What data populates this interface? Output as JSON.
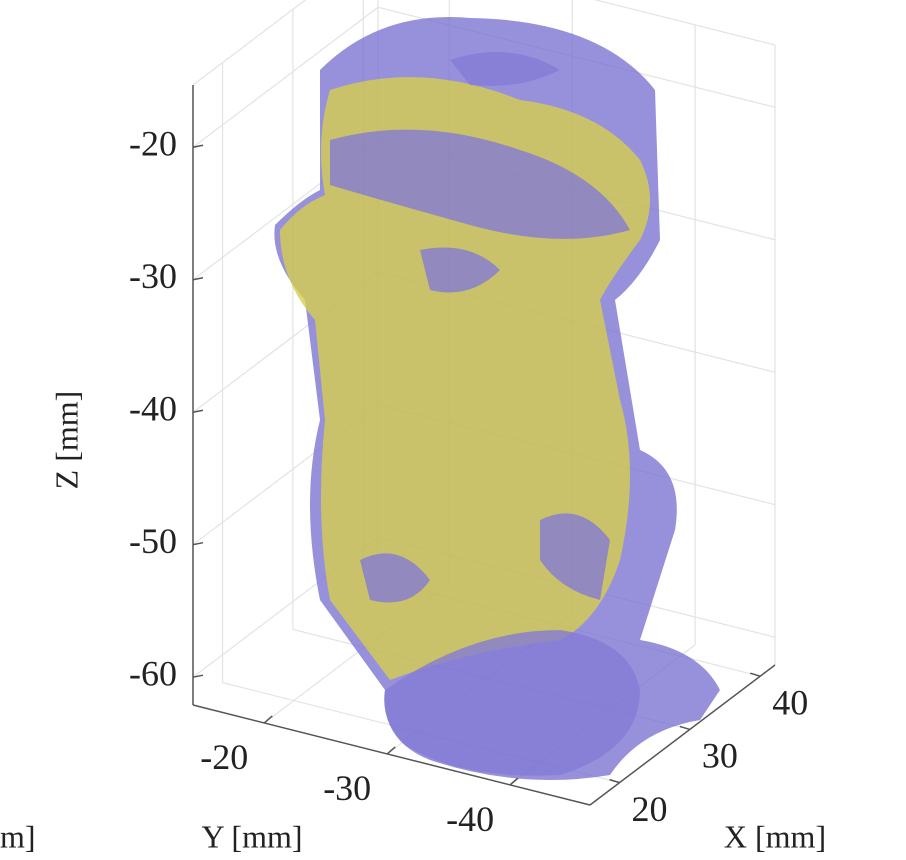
{
  "chart_data": {
    "type": "surface3d",
    "xlabel": "X [mm]",
    "ylabel": "Y [mm]",
    "zlabel": "Z [mm]",
    "clipped_label": "m]",
    "xlim": [
      15.8,
      42.1
    ],
    "xticks": [
      20,
      30,
      40
    ],
    "ylim": [
      -46.5,
      -14.2
    ],
    "yticks": [
      -20,
      -30,
      -40
    ],
    "zlim": [
      -62.1,
      -15.3
    ],
    "zticks": [
      -20,
      -30,
      -40,
      -50,
      -60
    ],
    "grid": true,
    "surface_colors": [
      "#d2cc3e",
      "#7a72d2"
    ]
  }
}
